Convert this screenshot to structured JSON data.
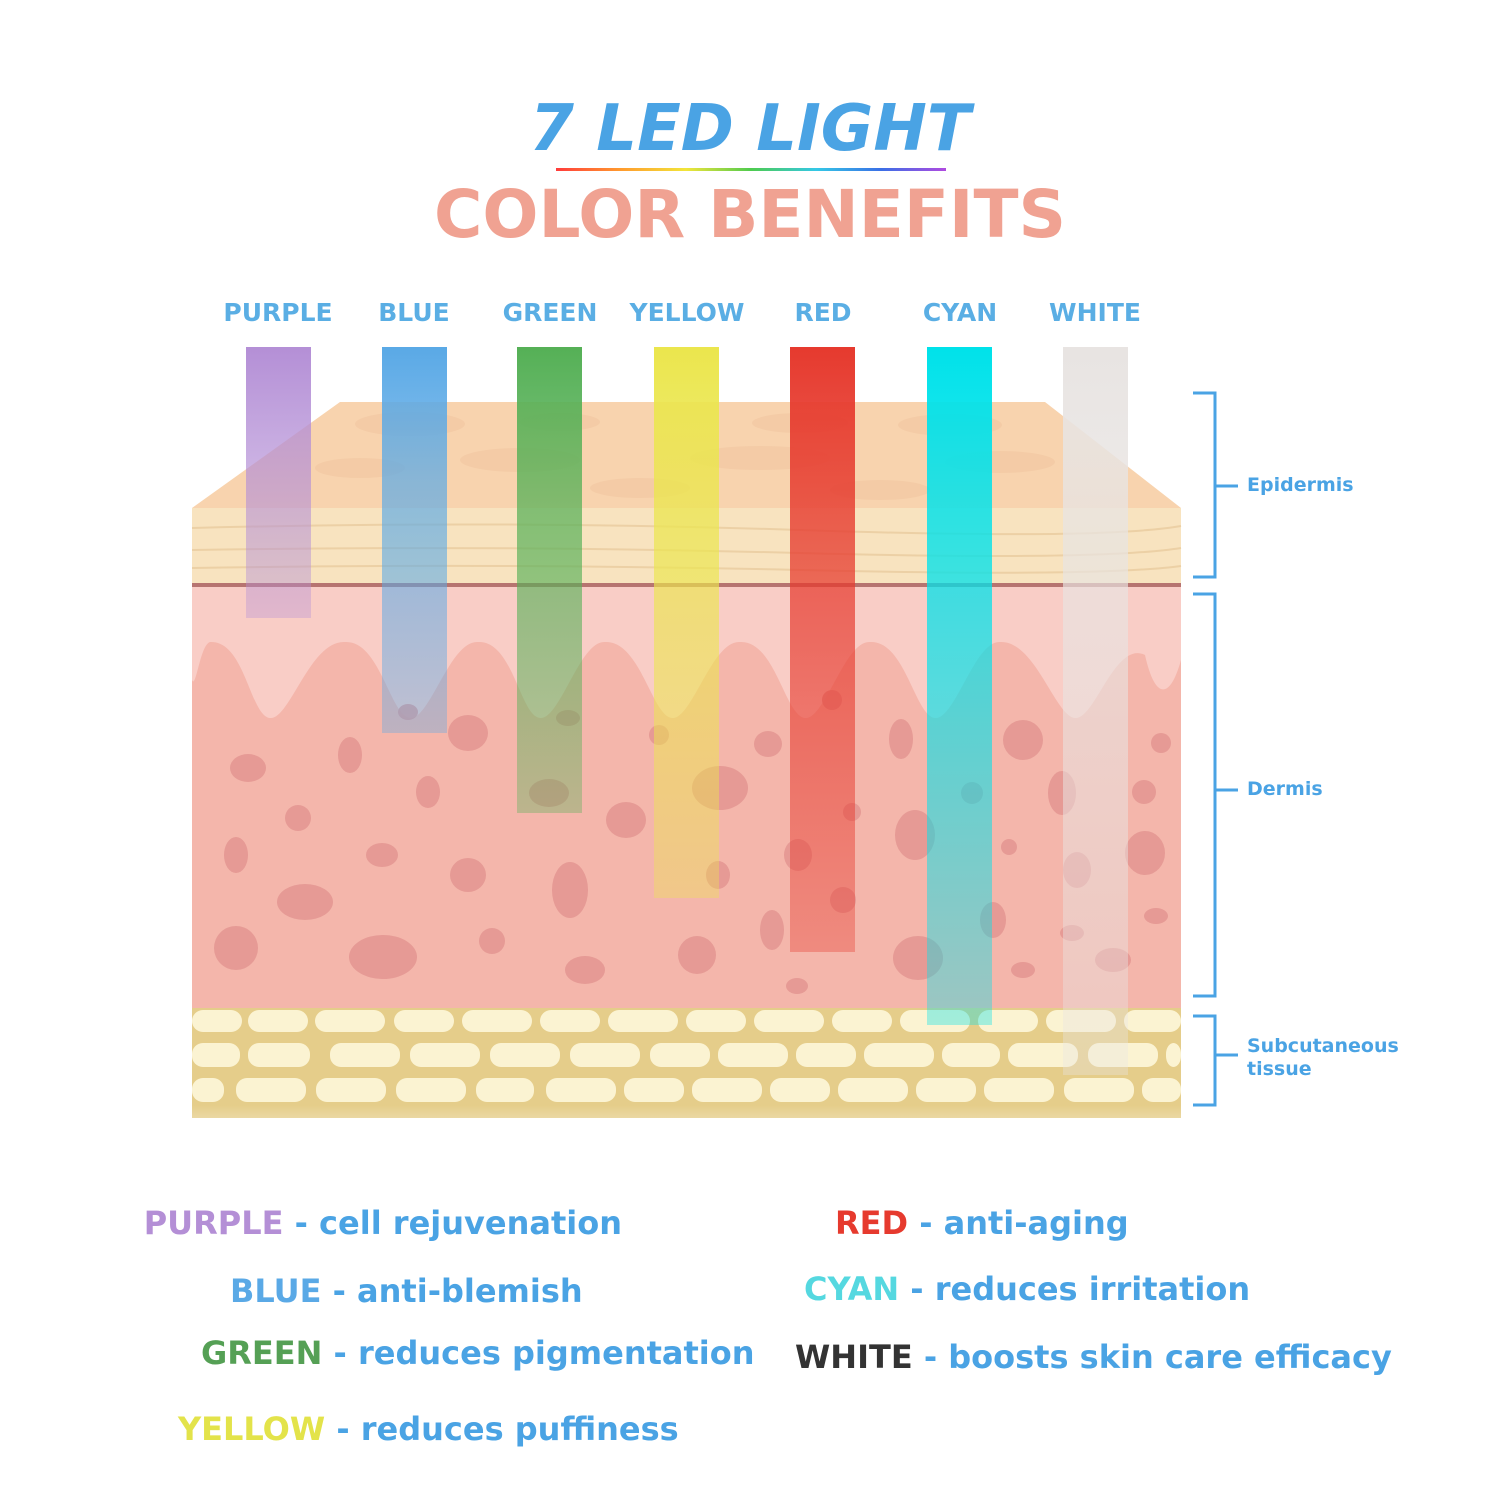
{
  "header": {
    "title_line1": "7 LED LIGHT",
    "title_line2": "COLOR BENEFITS"
  },
  "beams": [
    {
      "label": "PURPLE",
      "color": "#b48fd6",
      "depth": "epidermis"
    },
    {
      "label": "BLUE",
      "color": "#5aa9e6",
      "depth": "upper-dermis"
    },
    {
      "label": "GREEN",
      "color": "#55b056",
      "depth": "mid-dermis"
    },
    {
      "label": "YELLOW",
      "color": "#ebe64d",
      "depth": "mid-dermis"
    },
    {
      "label": "RED",
      "color": "#e63a2e",
      "depth": "deep-dermis"
    },
    {
      "label": "CYAN",
      "color": "#00e2ea",
      "depth": "subcutaneous"
    },
    {
      "label": "WHITE",
      "color": "#e8e4e2",
      "depth": "subcutaneous"
    }
  ],
  "layers": {
    "epidermis": "Epidermis",
    "dermis": "Dermis",
    "subcutaneous_line1": "Subcutaneous",
    "subcutaneous_line2": "tissue"
  },
  "benefits": [
    {
      "color_name": "PURPLE",
      "separator": " - ",
      "description": "cell rejuvenation",
      "color": "#b48fd6"
    },
    {
      "color_name": "BLUE",
      "separator": " - ",
      "description": "anti-blemish",
      "color": "#5aa9e6"
    },
    {
      "color_name": "GREEN",
      "separator": " - ",
      "description": "reduces pigmentation",
      "color": "#55a055"
    },
    {
      "color_name": "YELLOW",
      "separator": " - ",
      "description": "reduces puffiness",
      "color": "#e3e34a"
    },
    {
      "color_name": "RED",
      "separator": " - ",
      "description": "anti-aging",
      "color": "#e63a2e"
    },
    {
      "color_name": "CYAN",
      "separator": " - ",
      "description": "reduces irritation",
      "color": "#55d8e0"
    },
    {
      "color_name": "WHITE",
      "separator": " - ",
      "description": "boosts skin care efficacy",
      "color": "#333333"
    }
  ]
}
